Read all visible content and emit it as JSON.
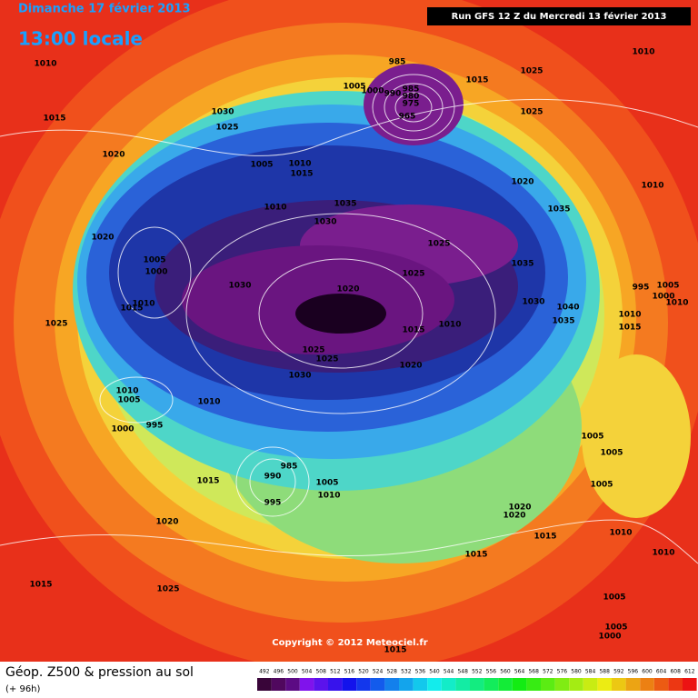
{
  "header": {
    "date": "Dimanche 17 février 2013",
    "time": "13:00 locale",
    "run": "Run GFS 12 Z du Mercredi 13 février 2013"
  },
  "isobar_labels": [
    1010,
    1015,
    1020,
    1030,
    1025,
    985,
    1005,
    1000,
    990,
    985,
    980,
    975,
    965,
    1015,
    1025,
    1010,
    1025,
    1020,
    1010,
    1035,
    1035,
    1025,
    1025,
    1020,
    1030,
    1040,
    1035,
    995,
    1005,
    1000,
    1010,
    1015,
    1010,
    1015,
    1010,
    1020,
    1005,
    1010,
    1015,
    1010,
    1030,
    1035,
    1020,
    1005,
    1000,
    1010,
    1015,
    1030,
    1025,
    1025,
    1025,
    1030,
    1010,
    1005,
    1010,
    1000,
    995,
    1015,
    990,
    985,
    995,
    1005,
    1010,
    1020,
    1005,
    1005,
    1005,
    1020,
    1020,
    1015,
    1015,
    1010,
    1010,
    1005,
    1005,
    1000,
    1025,
    1015,
    1015
  ],
  "copyright": "Copyright © 2012 Meteociel.fr",
  "footer": {
    "title": "Géop. Z500 & pression au sol",
    "lead": "(+ 96h)",
    "scale": [
      492,
      496,
      500,
      504,
      508,
      512,
      516,
      520,
      524,
      528,
      532,
      536,
      540,
      544,
      548,
      552,
      556,
      560,
      564,
      568,
      572,
      576,
      580,
      584,
      588,
      592,
      596,
      600,
      604,
      608,
      612
    ]
  }
}
